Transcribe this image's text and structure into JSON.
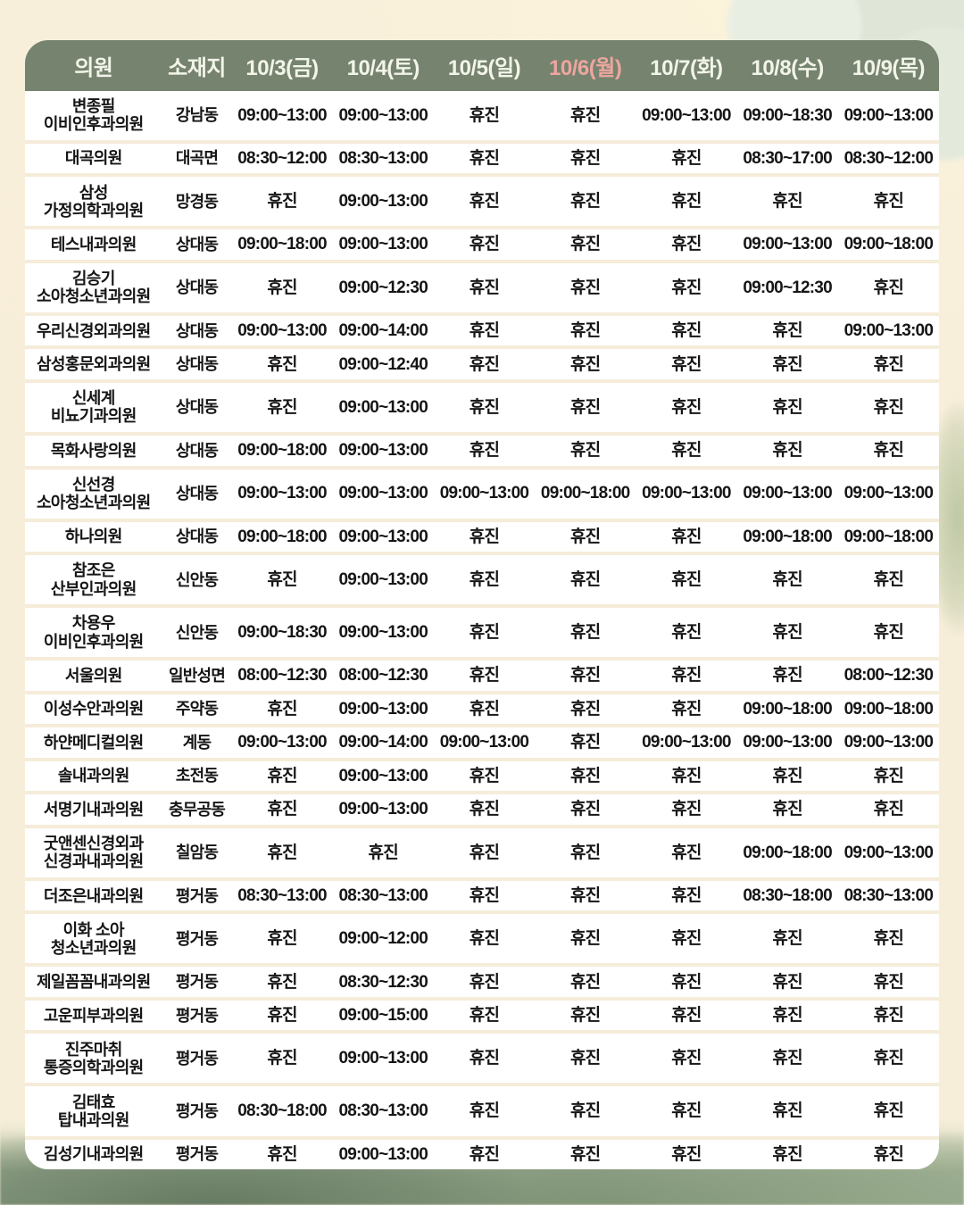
{
  "table": {
    "headers": [
      "의원",
      "소재지",
      "10/3(금)",
      "10/4(토)",
      "10/5(일)",
      "10/6(월)",
      "10/7(화)",
      "10/8(수)",
      "10/9(목)"
    ],
    "highlighted_header": "10/6(월)",
    "highlight_index": 5,
    "closed_label": "휴진",
    "rows": [
      {
        "name": "변종필\n이비인후과의원",
        "location": "강남동",
        "times": [
          "09:00~13:00",
          "09:00~13:00",
          "휴진",
          "휴진",
          "09:00~13:00",
          "09:00~18:30",
          "09:00~13:00"
        ]
      },
      {
        "name": "대곡의원",
        "location": "대곡면",
        "times": [
          "08:30~12:00",
          "08:30~13:00",
          "휴진",
          "휴진",
          "휴진",
          "08:30~17:00",
          "08:30~12:00"
        ]
      },
      {
        "name": "삼성\n가정의학과의원",
        "location": "망경동",
        "times": [
          "휴진",
          "09:00~13:00",
          "휴진",
          "휴진",
          "휴진",
          "휴진",
          "휴진"
        ]
      },
      {
        "name": "테스내과의원",
        "location": "상대동",
        "times": [
          "09:00~18:00",
          "09:00~13:00",
          "휴진",
          "휴진",
          "휴진",
          "09:00~13:00",
          "09:00~18:00"
        ]
      },
      {
        "name": "김승기\n소아청소년과의원",
        "location": "상대동",
        "times": [
          "휴진",
          "09:00~12:30",
          "휴진",
          "휴진",
          "휴진",
          "09:00~12:30",
          "휴진"
        ]
      },
      {
        "name": "우리신경외과의원",
        "location": "상대동",
        "times": [
          "09:00~13:00",
          "09:00~14:00",
          "휴진",
          "휴진",
          "휴진",
          "휴진",
          "09:00~13:00"
        ]
      },
      {
        "name": "삼성홍문외과의원",
        "location": "상대동",
        "times": [
          "휴진",
          "09:00~12:40",
          "휴진",
          "휴진",
          "휴진",
          "휴진",
          "휴진"
        ]
      },
      {
        "name": "신세계\n비뇨기과의원",
        "location": "상대동",
        "times": [
          "휴진",
          "09:00~13:00",
          "휴진",
          "휴진",
          "휴진",
          "휴진",
          "휴진"
        ]
      },
      {
        "name": "목화사랑의원",
        "location": "상대동",
        "times": [
          "09:00~18:00",
          "09:00~13:00",
          "휴진",
          "휴진",
          "휴진",
          "휴진",
          "휴진"
        ]
      },
      {
        "name": "신선경\n소아청소년과의원",
        "location": "상대동",
        "times": [
          "09:00~13:00",
          "09:00~13:00",
          "09:00~13:00",
          "09:00~18:00",
          "09:00~13:00",
          "09:00~13:00",
          "09:00~13:00"
        ]
      },
      {
        "name": "하나의원",
        "location": "상대동",
        "times": [
          "09:00~18:00",
          "09:00~13:00",
          "휴진",
          "휴진",
          "휴진",
          "09:00~18:00",
          "09:00~18:00"
        ]
      },
      {
        "name": "참조은\n산부인과의원",
        "location": "신안동",
        "times": [
          "휴진",
          "09:00~13:00",
          "휴진",
          "휴진",
          "휴진",
          "휴진",
          "휴진"
        ]
      },
      {
        "name": "차용우\n이비인후과의원",
        "location": "신안동",
        "times": [
          "09:00~18:30",
          "09:00~13:00",
          "휴진",
          "휴진",
          "휴진",
          "휴진",
          "휴진"
        ]
      },
      {
        "name": "서울의원",
        "location": "일반성면",
        "times": [
          "08:00~12:30",
          "08:00~12:30",
          "휴진",
          "휴진",
          "휴진",
          "휴진",
          "08:00~12:30"
        ]
      },
      {
        "name": "이성수안과의원",
        "location": "주약동",
        "times": [
          "휴진",
          "09:00~13:00",
          "휴진",
          "휴진",
          "휴진",
          "09:00~18:00",
          "09:00~18:00"
        ]
      },
      {
        "name": "하얀메디컬의원",
        "location": "계동",
        "times": [
          "09:00~13:00",
          "09:00~14:00",
          "09:00~13:00",
          "휴진",
          "09:00~13:00",
          "09:00~13:00",
          "09:00~13:00"
        ]
      },
      {
        "name": "솔내과의원",
        "location": "초전동",
        "times": [
          "휴진",
          "09:00~13:00",
          "휴진",
          "휴진",
          "휴진",
          "휴진",
          "휴진"
        ]
      },
      {
        "name": "서명기내과의원",
        "location": "충무공동",
        "times": [
          "휴진",
          "09:00~13:00",
          "휴진",
          "휴진",
          "휴진",
          "휴진",
          "휴진"
        ]
      },
      {
        "name": "굿앤센신경외과\n신경과내과의원",
        "location": "칠암동",
        "times": [
          "휴진",
          "휴진",
          "휴진",
          "휴진",
          "휴진",
          "09:00~18:00",
          "09:00~13:00"
        ]
      },
      {
        "name": "더조은내과의원",
        "location": "평거동",
        "times": [
          "08:30~13:00",
          "08:30~13:00",
          "휴진",
          "휴진",
          "휴진",
          "08:30~18:00",
          "08:30~13:00"
        ]
      },
      {
        "name": "이화 소아\n청소년과의원",
        "location": "평거동",
        "times": [
          "휴진",
          "09:00~12:00",
          "휴진",
          "휴진",
          "휴진",
          "휴진",
          "휴진"
        ]
      },
      {
        "name": "제일꼼꼼내과의원",
        "location": "평거동",
        "times": [
          "휴진",
          "08:30~12:30",
          "휴진",
          "휴진",
          "휴진",
          "휴진",
          "휴진"
        ]
      },
      {
        "name": "고운피부과의원",
        "location": "평거동",
        "times": [
          "휴진",
          "09:00~15:00",
          "휴진",
          "휴진",
          "휴진",
          "휴진",
          "휴진"
        ]
      },
      {
        "name": "진주마취\n통증의학과의원",
        "location": "평거동",
        "times": [
          "휴진",
          "09:00~13:00",
          "휴진",
          "휴진",
          "휴진",
          "휴진",
          "휴진"
        ]
      },
      {
        "name": "김태효\n탑내과의원",
        "location": "평거동",
        "times": [
          "08:30~18:00",
          "08:30~13:00",
          "휴진",
          "휴진",
          "휴진",
          "휴진",
          "휴진"
        ]
      },
      {
        "name": "김성기내과의원",
        "location": "평거동",
        "times": [
          "휴진",
          "09:00~13:00",
          "휴진",
          "휴진",
          "휴진",
          "휴진",
          "휴진"
        ]
      }
    ]
  },
  "colors": {
    "page_background": "#f8efdb",
    "header_background": "#76836e",
    "header_text": "#f2f4e9",
    "highlighted_date_text": "#eda6a0",
    "row_background": "#ffffff",
    "row_separator": "#f5ecda",
    "cell_text": "#151515",
    "watercolor_green": "#8a9d83"
  }
}
